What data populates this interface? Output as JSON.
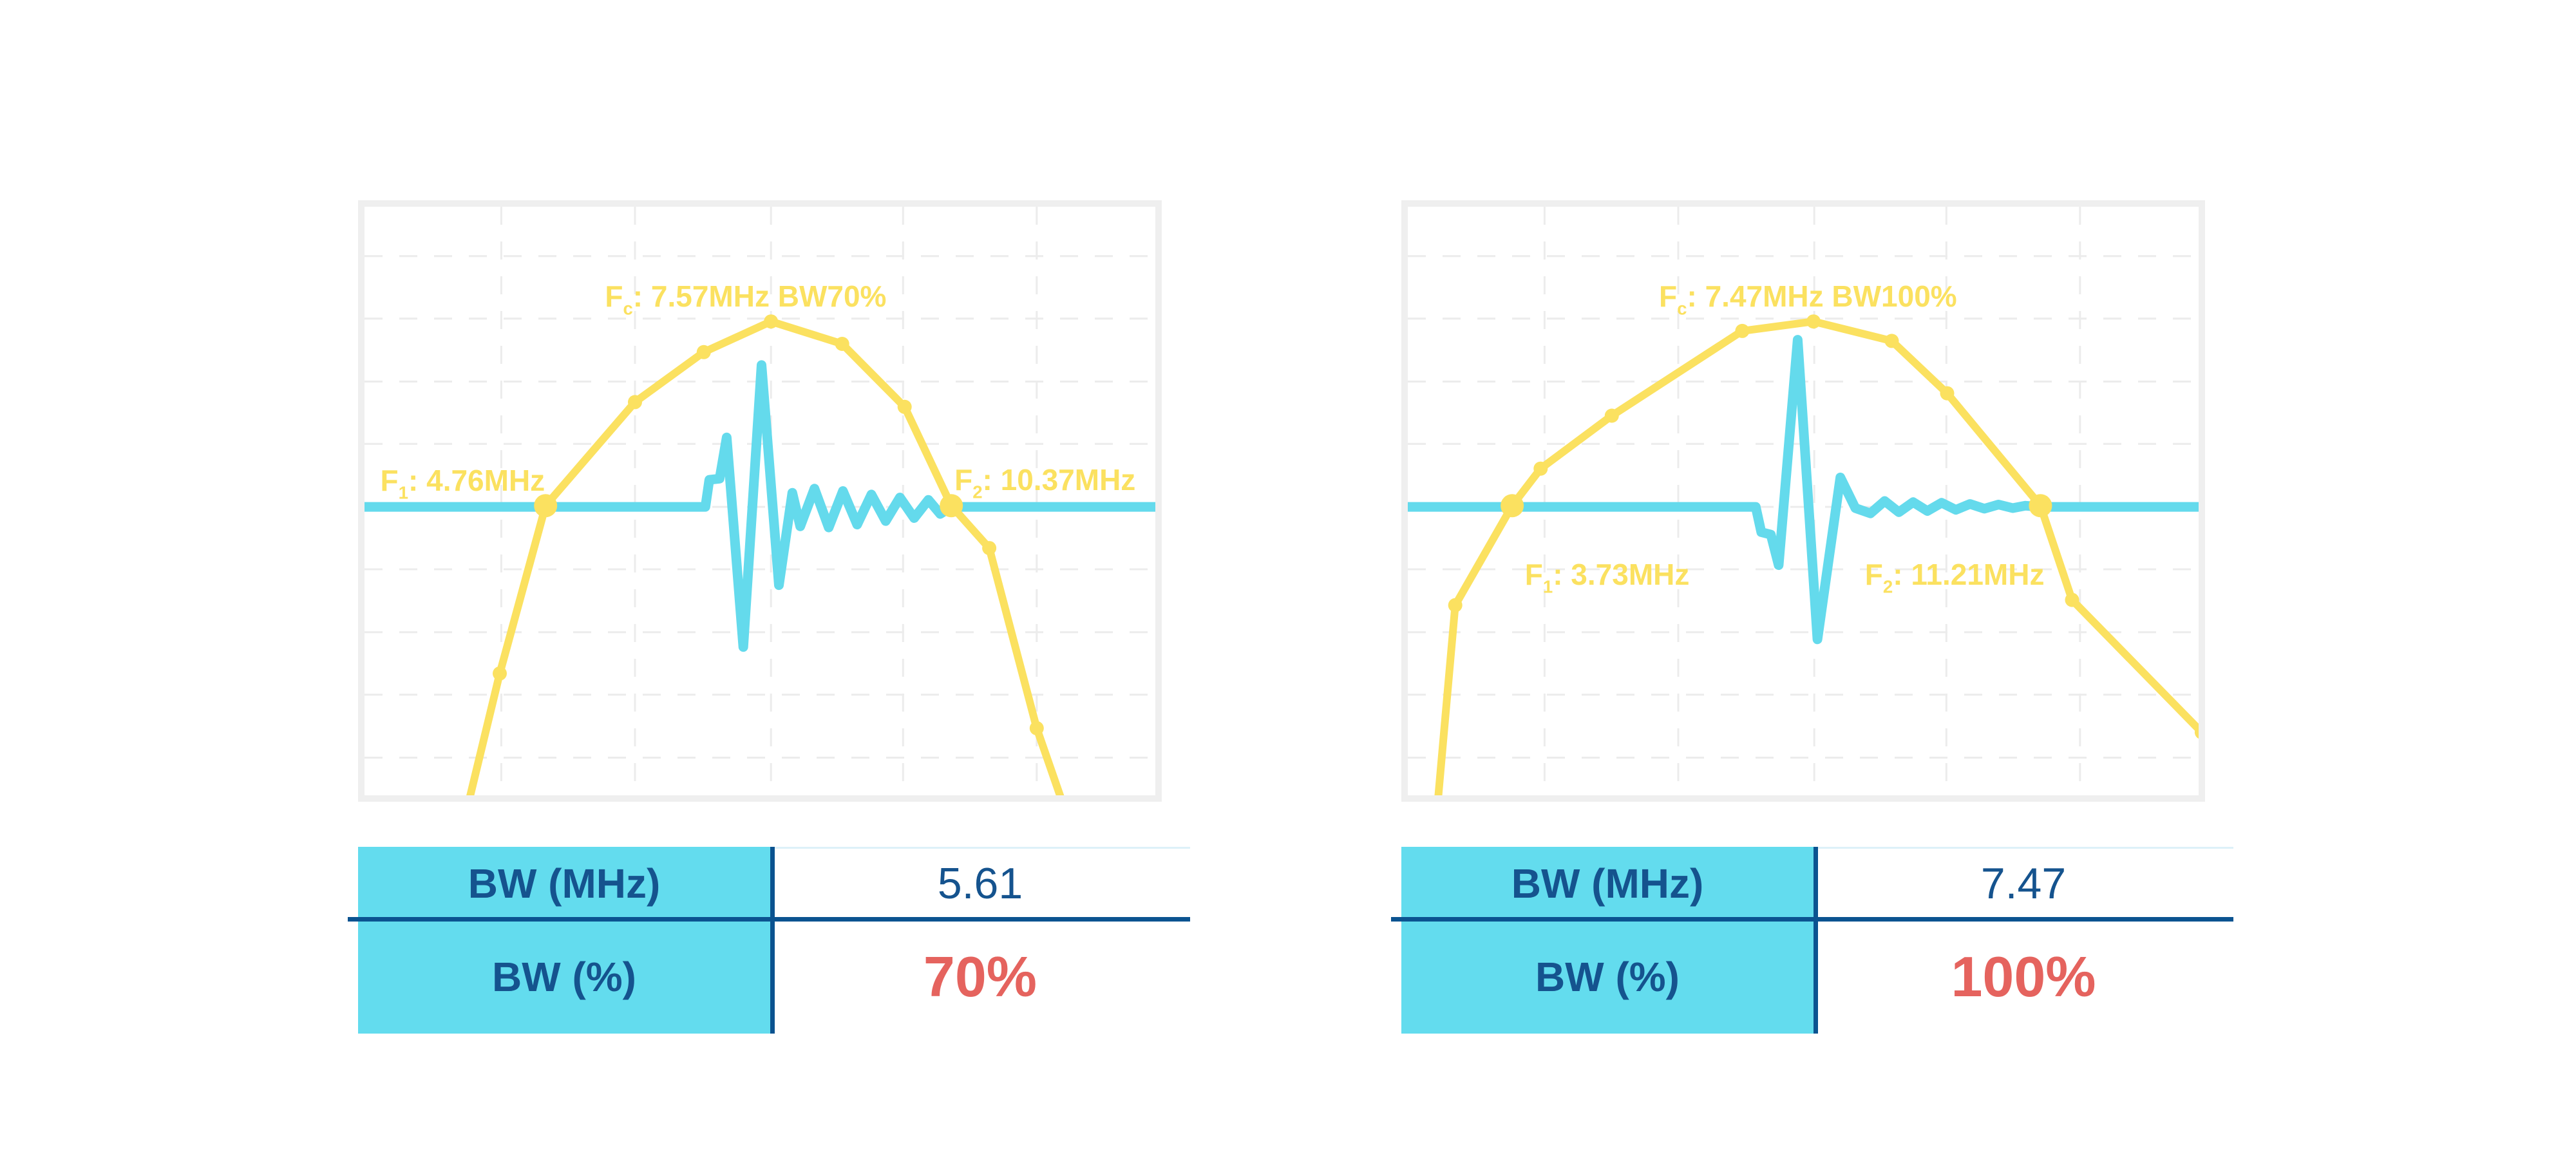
{
  "figure": {
    "background": "#FFFFFF"
  },
  "colors": {
    "yellow": "#FBE160",
    "cyan": "#64DAEC",
    "table_fill": "#63DCEE",
    "navy_text": "#15538E",
    "navy_line": "#0B5390",
    "red": "#E5635E",
    "panel_border": "#EFEFEF",
    "grid": "#ECECEC",
    "light_line": "#DDF1F8"
  },
  "grid": {
    "v": [
      0.173,
      0.342,
      0.514,
      0.681,
      0.85
    ],
    "h": [
      0.084,
      0.19,
      0.297,
      0.403,
      0.51,
      0.616,
      0.723,
      0.829,
      0.936
    ]
  },
  "chart_data": [
    {
      "type": "line",
      "title": "Fc: 7.57MHz BW70%",
      "description": "Pulse-echo waveform (cyan) and frequency spectrum (yellow), 70% bandwidth",
      "axes": {
        "x_ticks": null,
        "y_ticks": null,
        "grid": "dashed",
        "legend": "none"
      },
      "values": {
        "fc_mhz": 7.57,
        "f1_mhz": 4.76,
        "f2_mhz": 10.37,
        "bw_mhz": 5.61,
        "bw_pct": 70
      },
      "annotations": {
        "fc": {
          "f": "F",
          "sub": "c",
          "rest": ": 7.57MHz BW70%"
        },
        "f1": {
          "f": "F",
          "sub": "1",
          "rest": ": 4.76MHz"
        },
        "f2": {
          "f": "F",
          "sub": "2",
          "rest": ": 10.37MHz"
        }
      },
      "series": [
        {
          "name": "pulse-echo-waveform",
          "color_key": "cyan",
          "width": 15,
          "points_norm": [
            [
              0,
              0.51
            ],
            [
              0.431,
              0.51
            ],
            [
              0.436,
              0.464
            ],
            [
              0.449,
              0.462
            ],
            [
              0.458,
              0.392
            ],
            [
              0.479,
              0.748
            ],
            [
              0.502,
              0.269
            ],
            [
              0.524,
              0.643
            ],
            [
              0.541,
              0.486
            ],
            [
              0.551,
              0.543
            ],
            [
              0.569,
              0.479
            ],
            [
              0.587,
              0.545
            ],
            [
              0.605,
              0.483
            ],
            [
              0.623,
              0.54
            ],
            [
              0.641,
              0.489
            ],
            [
              0.659,
              0.534
            ],
            [
              0.677,
              0.494
            ],
            [
              0.695,
              0.529
            ],
            [
              0.713,
              0.498
            ],
            [
              0.728,
              0.522
            ],
            [
              0.742,
              0.51
            ],
            [
              1,
              0.51
            ]
          ]
        },
        {
          "name": "frequency-spectrum",
          "color_key": "yellow",
          "width": 12,
          "points_norm": [
            [
              0.132,
              1.01
            ],
            [
              0.171,
              0.793
            ],
            [
              0.229,
              0.508
            ],
            [
              0.342,
              0.332
            ],
            [
              0.429,
              0.247
            ],
            [
              0.514,
              0.195
            ],
            [
              0.604,
              0.233
            ],
            [
              0.683,
              0.34
            ],
            [
              0.742,
              0.508
            ],
            [
              0.79,
              0.58
            ],
            [
              0.85,
              0.886
            ],
            [
              0.882,
              1.01
            ]
          ],
          "markers": [
            {
              "i": 1
            },
            {
              "i": 2,
              "type": "big"
            },
            {
              "i": 3
            },
            {
              "i": 4
            },
            {
              "i": 5
            },
            {
              "i": 6
            },
            {
              "i": 7
            },
            {
              "i": 8,
              "type": "big"
            },
            {
              "i": 9
            },
            {
              "i": 10
            }
          ]
        }
      ],
      "table": {
        "rows": [
          {
            "label": "BW (MHz)",
            "value": "5.61"
          },
          {
            "label": "BW (%)",
            "value": "70%"
          }
        ]
      }
    },
    {
      "type": "line",
      "title": "Fc: 7.47MHz BW100%",
      "description": "Pulse-echo waveform (cyan) and frequency spectrum (yellow), 100% bandwidth",
      "axes": {
        "x_ticks": null,
        "y_ticks": null,
        "grid": "dashed",
        "legend": "none"
      },
      "values": {
        "fc_mhz": 7.47,
        "f1_mhz": 3.73,
        "f2_mhz": 11.21,
        "bw_mhz": 7.47,
        "bw_pct": 100
      },
      "annotations": {
        "fc": {
          "f": "F",
          "sub": "c",
          "rest": ": 7.47MHz BW100%"
        },
        "f1": {
          "f": "F",
          "sub": "1",
          "rest": ": 3.73MHz"
        },
        "f2": {
          "f": "F",
          "sub": "2",
          "rest": ": 11.21MHz"
        }
      },
      "series": [
        {
          "name": "pulse-echo-waveform",
          "color_key": "cyan",
          "width": 15,
          "points_norm": [
            [
              0,
              0.51
            ],
            [
              0.44,
              0.51
            ],
            [
              0.447,
              0.553
            ],
            [
              0.459,
              0.557
            ],
            [
              0.469,
              0.609
            ],
            [
              0.493,
              0.226
            ],
            [
              0.518,
              0.735
            ],
            [
              0.547,
              0.46
            ],
            [
              0.566,
              0.512
            ],
            [
              0.585,
              0.521
            ],
            [
              0.603,
              0.5
            ],
            [
              0.621,
              0.519
            ],
            [
              0.639,
              0.502
            ],
            [
              0.657,
              0.517
            ],
            [
              0.675,
              0.503
            ],
            [
              0.693,
              0.515
            ],
            [
              0.711,
              0.505
            ],
            [
              0.729,
              0.513
            ],
            [
              0.747,
              0.506
            ],
            [
              0.765,
              0.512
            ],
            [
              0.781,
              0.508
            ],
            [
              0.8,
              0.51
            ],
            [
              1,
              0.51
            ]
          ]
        },
        {
          "name": "frequency-spectrum",
          "color_key": "yellow",
          "width": 12,
          "points_norm": [
            [
              0.038,
              1.01
            ],
            [
              0.06,
              0.677
            ],
            [
              0.132,
              0.508
            ],
            [
              0.168,
              0.445
            ],
            [
              0.258,
              0.355
            ],
            [
              0.423,
              0.211
            ],
            [
              0.513,
              0.195
            ],
            [
              0.612,
              0.228
            ],
            [
              0.682,
              0.317
            ],
            [
              0.8,
              0.508
            ],
            [
              0.84,
              0.668
            ],
            [
              1.004,
              0.893
            ]
          ],
          "markers": [
            {
              "i": 1
            },
            {
              "i": 2,
              "type": "big"
            },
            {
              "i": 3
            },
            {
              "i": 4
            },
            {
              "i": 5
            },
            {
              "i": 6
            },
            {
              "i": 7
            },
            {
              "i": 8
            },
            {
              "i": 9,
              "type": "big"
            },
            {
              "i": 10
            },
            {
              "i": 11
            }
          ]
        }
      ],
      "table": {
        "rows": [
          {
            "label": "BW (MHz)",
            "value": "7.47"
          },
          {
            "label": "BW (%)",
            "value": "100%"
          }
        ]
      }
    }
  ]
}
